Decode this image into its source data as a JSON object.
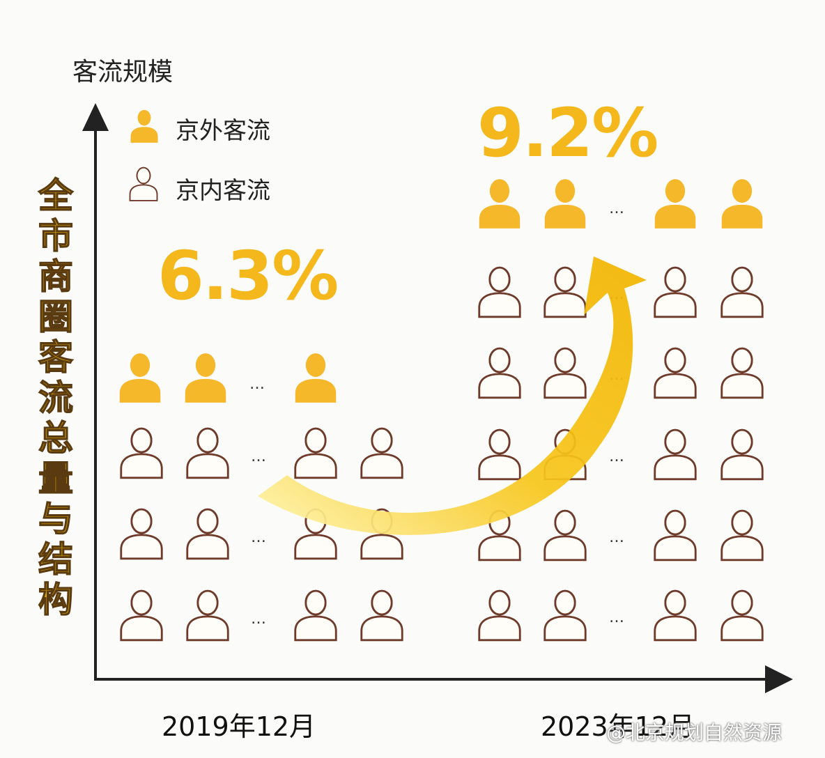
{
  "y_axis_title": "客流规模",
  "side_title": [
    "全",
    "市",
    "商",
    "圈",
    "客",
    "流",
    "总",
    "量",
    "与",
    "结",
    "构"
  ],
  "legend": {
    "outside": "京外客流",
    "inside": "京内客流"
  },
  "periods": {
    "before": "2019年12月",
    "after": "2023年12月"
  },
  "shares": {
    "before": "6.3%",
    "after": "9.2%"
  },
  "ellipsis": "…",
  "watermark": "@北京规划自然资源",
  "colors": {
    "outside_fill": "#f6b82b",
    "inside_stroke": "#6e3a2a",
    "axis": "#222222",
    "arrow_light": "#fff3a0",
    "arrow_dark": "#e6a800"
  },
  "icons": {
    "outside": "person-filled-icon",
    "inside": "person-outline-icon"
  }
}
